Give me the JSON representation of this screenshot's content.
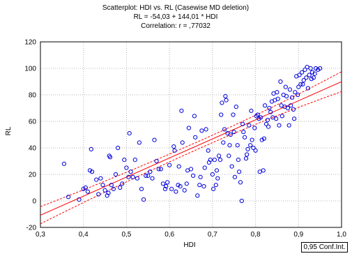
{
  "chart_data": {
    "type": "scatter",
    "title_lines": [
      "Scatterplot: HDI     vs. RL      (Casewise MD deletion)",
      "RL       = -54,03 + 144,01 * HDI",
      "Correlation: r = ,77032"
    ],
    "xlabel": "HDI",
    "ylabel": "RL",
    "xlim": [
      0.3,
      1.0
    ],
    "ylim": [
      -20,
      120
    ],
    "x_ticks": [
      "0,3",
      "0,4",
      "0,5",
      "0,6",
      "0,7",
      "0,8",
      "0,9",
      "1,0"
    ],
    "y_ticks": [
      "-20",
      "0",
      "20",
      "40",
      "60",
      "80",
      "100",
      "120"
    ],
    "grid": true,
    "regression": {
      "intercept": -54.03,
      "slope": 144.01
    },
    "confidence_band": {
      "at_x_0_3": 6.5,
      "at_x_1_0": 7.5,
      "at_mean": 2.8,
      "mean_x": 0.68
    },
    "legend": "0,95 Conf.Int.",
    "colors": {
      "points": "#0000dd",
      "fit": "#ff0000",
      "ci": "#ff0000",
      "grid": "#b4b4b4"
    },
    "points": [
      [
        0.355,
        28
      ],
      [
        0.365,
        3
      ],
      [
        0.39,
        1
      ],
      [
        0.4,
        9
      ],
      [
        0.405,
        10
      ],
      [
        0.41,
        7
      ],
      [
        0.415,
        23
      ],
      [
        0.418,
        39
      ],
      [
        0.42,
        22
      ],
      [
        0.43,
        16
      ],
      [
        0.435,
        5
      ],
      [
        0.44,
        17
      ],
      [
        0.445,
        12
      ],
      [
        0.45,
        8
      ],
      [
        0.455,
        4
      ],
      [
        0.458,
        6
      ],
      [
        0.46,
        34
      ],
      [
        0.462,
        33
      ],
      [
        0.465,
        12
      ],
      [
        0.47,
        9
      ],
      [
        0.475,
        20
      ],
      [
        0.48,
        40
      ],
      [
        0.485,
        10
      ],
      [
        0.49,
        13
      ],
      [
        0.495,
        31
      ],
      [
        0.5,
        25
      ],
      [
        0.505,
        18
      ],
      [
        0.507,
        51
      ],
      [
        0.51,
        22
      ],
      [
        0.515,
        18
      ],
      [
        0.52,
        31
      ],
      [
        0.525,
        17
      ],
      [
        0.53,
        44
      ],
      [
        0.535,
        9
      ],
      [
        0.54,
        1
      ],
      [
        0.545,
        19
      ],
      [
        0.55,
        19
      ],
      [
        0.555,
        22
      ],
      [
        0.56,
        17
      ],
      [
        0.565,
        46
      ],
      [
        0.57,
        30
      ],
      [
        0.575,
        24
      ],
      [
        0.58,
        24
      ],
      [
        0.585,
        13
      ],
      [
        0.59,
        9
      ],
      [
        0.592,
        11
      ],
      [
        0.595,
        14
      ],
      [
        0.6,
        27
      ],
      [
        0.605,
        9
      ],
      [
        0.61,
        41
      ],
      [
        0.612,
        38
      ],
      [
        0.615,
        7
      ],
      [
        0.62,
        12
      ],
      [
        0.622,
        26
      ],
      [
        0.625,
        11
      ],
      [
        0.628,
        68
      ],
      [
        0.63,
        44
      ],
      [
        0.635,
        8
      ],
      [
        0.64,
        13
      ],
      [
        0.642,
        23
      ],
      [
        0.645,
        55
      ],
      [
        0.65,
        24
      ],
      [
        0.655,
        19
      ],
      [
        0.658,
        64
      ],
      [
        0.66,
        48
      ],
      [
        0.665,
        4
      ],
      [
        0.67,
        12
      ],
      [
        0.672,
        18
      ],
      [
        0.675,
        53
      ],
      [
        0.68,
        11
      ],
      [
        0.682,
        25
      ],
      [
        0.685,
        54
      ],
      [
        0.69,
        38
      ],
      [
        0.692,
        29
      ],
      [
        0.695,
        31
      ],
      [
        0.7,
        20
      ],
      [
        0.702,
        9
      ],
      [
        0.705,
        31
      ],
      [
        0.708,
        12
      ],
      [
        0.71,
        23
      ],
      [
        0.712,
        17
      ],
      [
        0.715,
        34
      ],
      [
        0.718,
        31
      ],
      [
        0.72,
        65
      ],
      [
        0.722,
        74
      ],
      [
        0.725,
        44
      ],
      [
        0.728,
        54
      ],
      [
        0.73,
        79
      ],
      [
        0.732,
        76
      ],
      [
        0.735,
        51
      ],
      [
        0.738,
        34
      ],
      [
        0.74,
        42
      ],
      [
        0.742,
        50
      ],
      [
        0.745,
        26
      ],
      [
        0.748,
        65
      ],
      [
        0.75,
        52
      ],
      [
        0.752,
        18
      ],
      [
        0.755,
        71
      ],
      [
        0.758,
        42
      ],
      [
        0.76,
        31
      ],
      [
        0.762,
        22
      ],
      [
        0.765,
        14
      ],
      [
        0.768,
        0
      ],
      [
        0.77,
        58
      ],
      [
        0.772,
        52
      ],
      [
        0.775,
        48
      ],
      [
        0.778,
        32
      ],
      [
        0.78,
        35
      ],
      [
        0.782,
        39
      ],
      [
        0.785,
        57
      ],
      [
        0.788,
        42
      ],
      [
        0.79,
        68
      ],
      [
        0.792,
        46
      ],
      [
        0.795,
        40
      ],
      [
        0.798,
        55
      ],
      [
        0.8,
        38
      ],
      [
        0.802,
        64
      ],
      [
        0.805,
        65
      ],
      [
        0.808,
        62
      ],
      [
        0.81,
        22
      ],
      [
        0.812,
        63
      ],
      [
        0.815,
        46
      ],
      [
        0.818,
        23
      ],
      [
        0.82,
        47
      ],
      [
        0.822,
        72
      ],
      [
        0.825,
        58
      ],
      [
        0.828,
        61
      ],
      [
        0.83,
        56
      ],
      [
        0.832,
        70
      ],
      [
        0.835,
        67
      ],
      [
        0.838,
        75
      ],
      [
        0.84,
        63
      ],
      [
        0.842,
        81
      ],
      [
        0.845,
        76
      ],
      [
        0.848,
        62
      ],
      [
        0.85,
        82
      ],
      [
        0.852,
        77
      ],
      [
        0.855,
        57
      ],
      [
        0.858,
        90
      ],
      [
        0.86,
        72
      ],
      [
        0.862,
        64
      ],
      [
        0.865,
        80
      ],
      [
        0.868,
        71
      ],
      [
        0.87,
        86
      ],
      [
        0.872,
        79
      ],
      [
        0.875,
        70
      ],
      [
        0.878,
        57
      ],
      [
        0.88,
        84
      ],
      [
        0.882,
        72
      ],
      [
        0.885,
        78
      ],
      [
        0.888,
        69
      ],
      [
        0.89,
        62
      ],
      [
        0.892,
        82
      ],
      [
        0.895,
        94
      ],
      [
        0.898,
        80
      ],
      [
        0.9,
        86
      ],
      [
        0.902,
        95
      ],
      [
        0.905,
        88
      ],
      [
        0.908,
        97
      ],
      [
        0.91,
        88
      ],
      [
        0.912,
        91
      ],
      [
        0.915,
        99
      ],
      [
        0.918,
        93
      ],
      [
        0.92,
        101
      ],
      [
        0.922,
        85
      ],
      [
        0.925,
        95
      ],
      [
        0.928,
        100
      ],
      [
        0.93,
        92
      ],
      [
        0.932,
        97
      ],
      [
        0.935,
        93
      ],
      [
        0.938,
        96
      ],
      [
        0.94,
        100
      ],
      [
        0.945,
        99
      ],
      [
        0.95,
        100
      ]
    ]
  }
}
